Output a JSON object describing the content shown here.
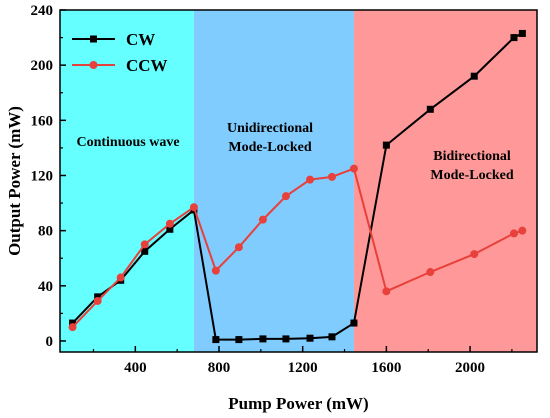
{
  "chart_data": {
    "type": "line",
    "xlabel": "Pump Power (mW)",
    "ylabel": "Output Power (mW)",
    "xlim": [
      40,
      2320
    ],
    "ylim": [
      -8,
      240
    ],
    "xticks": [
      400,
      800,
      1200,
      1600,
      2000
    ],
    "xtick_labels": [
      "400",
      "800",
      "1200",
      "1600",
      "2000"
    ],
    "yticks": [
      0,
      40,
      80,
      120,
      160,
      200,
      240
    ],
    "ytick_labels": [
      "0",
      "40",
      "80",
      "120",
      "160",
      "200",
      "240"
    ],
    "grid": false,
    "legend_position": "top-left",
    "regions": [
      {
        "x_start": 40,
        "x_end": 680,
        "color": "#66ffff",
        "label_lines": [
          "Continuous wave"
        ]
      },
      {
        "x_start": 680,
        "x_end": 1445,
        "color": "#80ccff",
        "label_lines": [
          "Unidirectional",
          "Mode-Locked"
        ]
      },
      {
        "x_start": 1445,
        "x_end": 2320,
        "color": "#ff9999",
        "label_lines": [
          "Bidirectional",
          "Mode-Locked"
        ]
      }
    ],
    "series": [
      {
        "name": "CW",
        "color": "#000000",
        "marker": "square",
        "x": [
          100,
          220,
          330,
          445,
          565,
          680,
          785,
          895,
          1010,
          1120,
          1235,
          1340,
          1445,
          1600,
          1810,
          2020,
          2210,
          2250
        ],
        "y": [
          13,
          32,
          44,
          65,
          81,
          95,
          1,
          1,
          1.5,
          1.5,
          2,
          3,
          13,
          142,
          168,
          192,
          220,
          223
        ]
      },
      {
        "name": "CCW",
        "color": "#e8403a",
        "marker": "circle",
        "x": [
          100,
          220,
          330,
          445,
          565,
          680,
          785,
          895,
          1010,
          1120,
          1235,
          1340,
          1445,
          1600,
          1810,
          2020,
          2210,
          2250
        ],
        "y": [
          10,
          29,
          46,
          70,
          85,
          97,
          51,
          68,
          88,
          105,
          117,
          119,
          125,
          36,
          50,
          63,
          78,
          80
        ]
      }
    ]
  }
}
